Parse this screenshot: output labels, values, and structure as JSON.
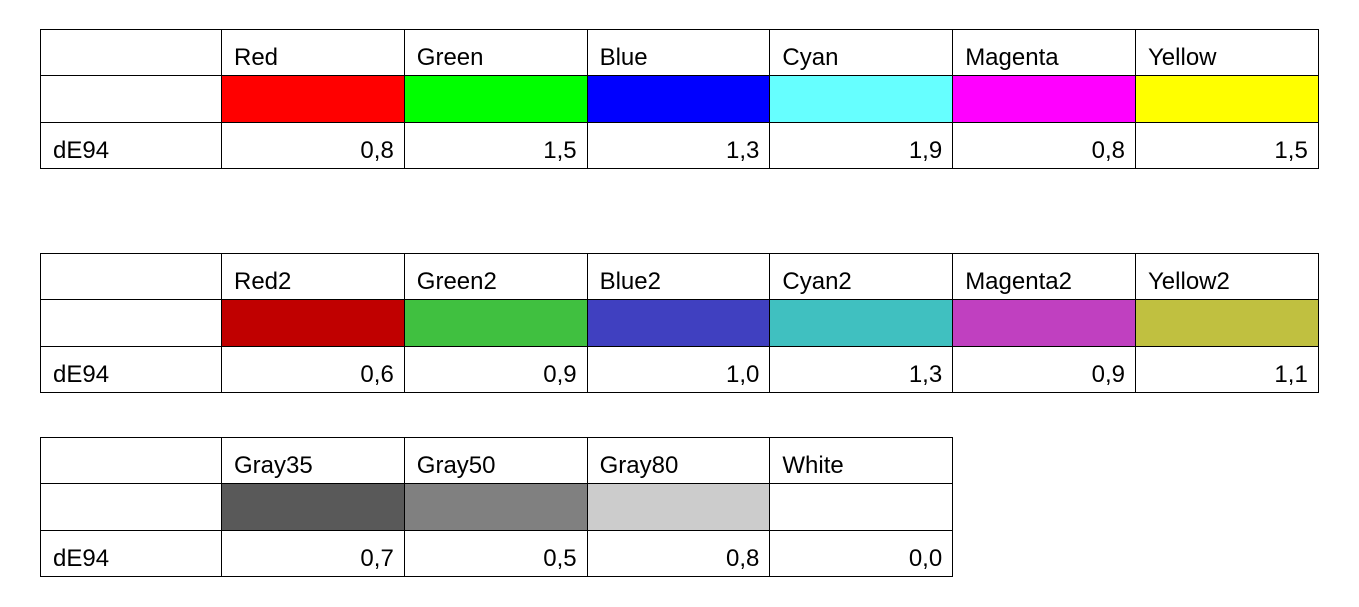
{
  "tables": [
    {
      "headers": [
        "Red",
        "Green",
        "Blue",
        "Cyan",
        "Magenta",
        "Yellow"
      ],
      "colors": [
        "#ff0000",
        "#00ff00",
        "#0000ff",
        "#66ffff",
        "#ff00ff",
        "#ffff00"
      ],
      "row_label": "dE94",
      "values": [
        "0,8",
        "1,5",
        "1,3",
        "1,9",
        "0,8",
        "1,5"
      ]
    },
    {
      "headers": [
        "Red2",
        "Green2",
        "Blue2",
        "Cyan2",
        "Magenta2",
        "Yellow2"
      ],
      "colors": [
        "#c00000",
        "#40c040",
        "#4040c0",
        "#40c0c0",
        "#c040c0",
        "#c0c040"
      ],
      "row_label": "dE94",
      "values": [
        "0,6",
        "0,9",
        "1,0",
        "1,3",
        "0,9",
        "1,1"
      ]
    },
    {
      "headers": [
        "Gray35",
        "Gray50",
        "Gray80",
        "White"
      ],
      "colors": [
        "#595959",
        "#808080",
        "#cccccc",
        "#ffffff"
      ],
      "row_label": "dE94",
      "values": [
        "0,7",
        "0,5",
        "0,8",
        "0,0"
      ]
    }
  ]
}
